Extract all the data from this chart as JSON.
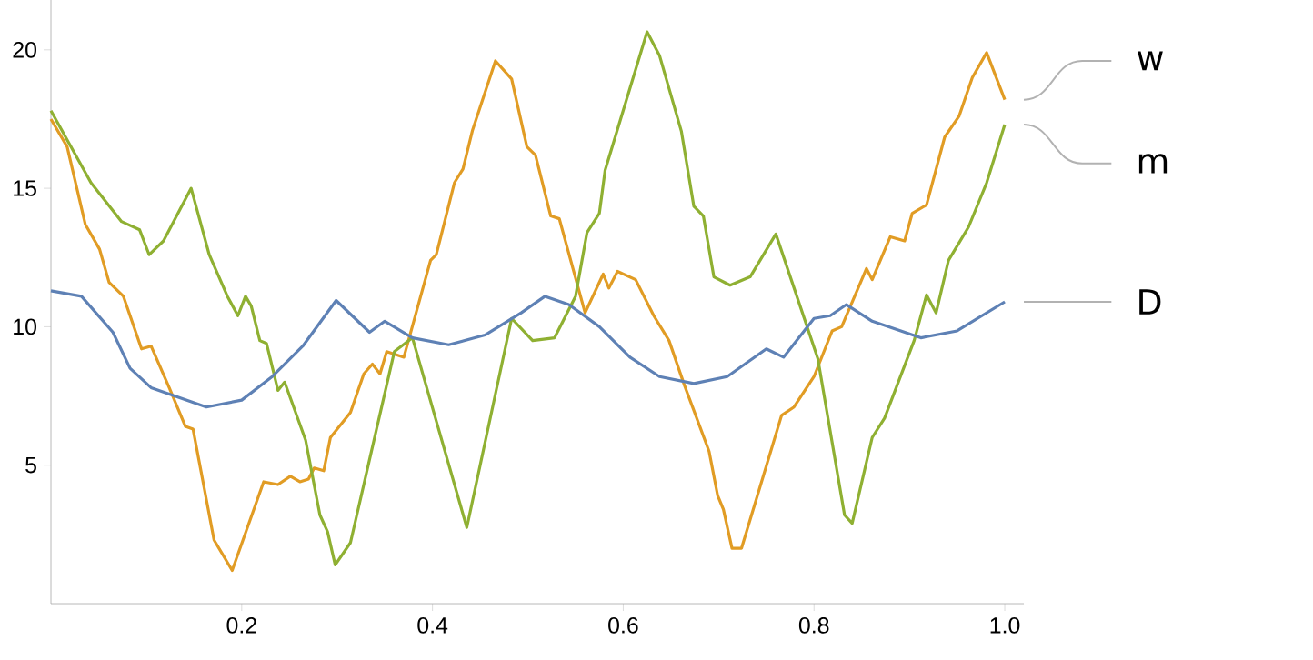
{
  "chart_data": {
    "type": "line",
    "xlim": [
      0,
      1.02
    ],
    "ylim": [
      0,
      21.8
    ],
    "xticks": [
      0.2,
      0.4,
      0.6,
      0.8,
      {
        "value": 1,
        "label": "1.0"
      }
    ],
    "yticks": [
      5,
      10,
      15,
      20
    ],
    "grid": false,
    "marker": "none",
    "line_style": "solid",
    "series": [
      {
        "name": "w",
        "color": "#e19c24",
        "x": [
          0,
          0.017,
          0.036,
          0.051,
          0.061,
          0.076,
          0.095,
          0.105,
          0.124,
          0.141,
          0.149,
          0.171,
          0.19,
          0.223,
          0.238,
          0.251,
          0.261,
          0.27,
          0.276,
          0.286,
          0.293,
          0.314,
          0.328,
          0.337,
          0.345,
          0.352,
          0.37,
          0.398,
          0.404,
          0.423,
          0.432,
          0.442,
          0.466,
          0.483,
          0.499,
          0.508,
          0.524,
          0.533,
          0.56,
          0.579,
          0.585,
          0.594,
          0.613,
          0.632,
          0.648,
          0.664,
          0.69,
          0.699,
          0.705,
          0.714,
          0.724,
          0.766,
          0.779,
          0.8,
          0.819,
          0.829,
          0.855,
          0.861,
          0.88,
          0.895,
          0.903,
          0.918,
          0.937,
          0.952,
          0.966,
          0.981,
          1.0
        ],
        "values": [
          17.5,
          16.5,
          13.7,
          12.8,
          11.6,
          11.1,
          9.2,
          9.3,
          7.8,
          6.4,
          6.3,
          2.3,
          1.2,
          4.4,
          4.3,
          4.6,
          4.4,
          4.5,
          4.9,
          4.8,
          6.0,
          6.9,
          8.3,
          8.65,
          8.3,
          9.1,
          8.9,
          12.4,
          12.6,
          15.2,
          15.7,
          17.1,
          19.6,
          18.95,
          16.5,
          16.2,
          14.0,
          13.9,
          10.5,
          11.9,
          11.4,
          12.0,
          11.7,
          10.4,
          9.5,
          7.9,
          5.5,
          3.9,
          3.4,
          2.0,
          2.0,
          6.8,
          7.1,
          8.2,
          9.85,
          10.0,
          12.1,
          11.7,
          13.25,
          13.1,
          14.1,
          14.4,
          16.85,
          17.6,
          19.0,
          19.9,
          18.2
        ]
      },
      {
        "name": "m",
        "color": "#8fb032",
        "x": [
          0,
          0.042,
          0.074,
          0.093,
          0.103,
          0.118,
          0.147,
          0.166,
          0.185,
          0.196,
          0.204,
          0.21,
          0.219,
          0.226,
          0.238,
          0.245,
          0.267,
          0.282,
          0.29,
          0.298,
          0.314,
          0.36,
          0.379,
          0.436,
          0.483,
          0.505,
          0.528,
          0.55,
          0.562,
          0.575,
          0.581,
          0.625,
          0.638,
          0.661,
          0.674,
          0.684,
          0.695,
          0.712,
          0.733,
          0.76,
          0.804,
          0.832,
          0.84,
          0.861,
          0.874,
          0.905,
          0.918,
          0.928,
          0.941,
          0.962,
          0.981,
          1.0
        ],
        "values": [
          17.8,
          15.2,
          13.8,
          13.5,
          12.6,
          13.1,
          15.0,
          12.6,
          11.1,
          10.4,
          11.1,
          10.75,
          9.5,
          9.4,
          7.7,
          8.0,
          5.9,
          3.2,
          2.6,
          1.4,
          2.2,
          9.1,
          9.6,
          2.75,
          10.3,
          9.5,
          9.6,
          11.1,
          13.4,
          14.1,
          15.65,
          20.65,
          19.8,
          17.05,
          14.35,
          14.0,
          11.8,
          11.5,
          11.8,
          13.35,
          8.85,
          3.2,
          2.9,
          6.0,
          6.7,
          9.5,
          11.15,
          10.5,
          12.4,
          13.6,
          15.2,
          17.3
        ]
      },
      {
        "name": "D",
        "color": "#5e81b5",
        "x": [
          0,
          0.032,
          0.065,
          0.083,
          0.105,
          0.163,
          0.2,
          0.232,
          0.264,
          0.299,
          0.334,
          0.35,
          0.379,
          0.417,
          0.455,
          0.493,
          0.518,
          0.543,
          0.575,
          0.607,
          0.638,
          0.674,
          0.709,
          0.75,
          0.768,
          0.8,
          0.817,
          0.834,
          0.861,
          0.912,
          0.95,
          1.0
        ],
        "values": [
          11.3,
          11.1,
          9.8,
          8.5,
          7.8,
          7.1,
          7.35,
          8.2,
          9.3,
          10.95,
          9.8,
          10.2,
          9.6,
          9.35,
          9.7,
          10.5,
          11.1,
          10.8,
          10.0,
          8.9,
          8.2,
          7.95,
          8.2,
          9.2,
          8.9,
          10.3,
          10.4,
          10.8,
          10.2,
          9.6,
          9.85,
          10.9
        ]
      }
    ]
  }
}
